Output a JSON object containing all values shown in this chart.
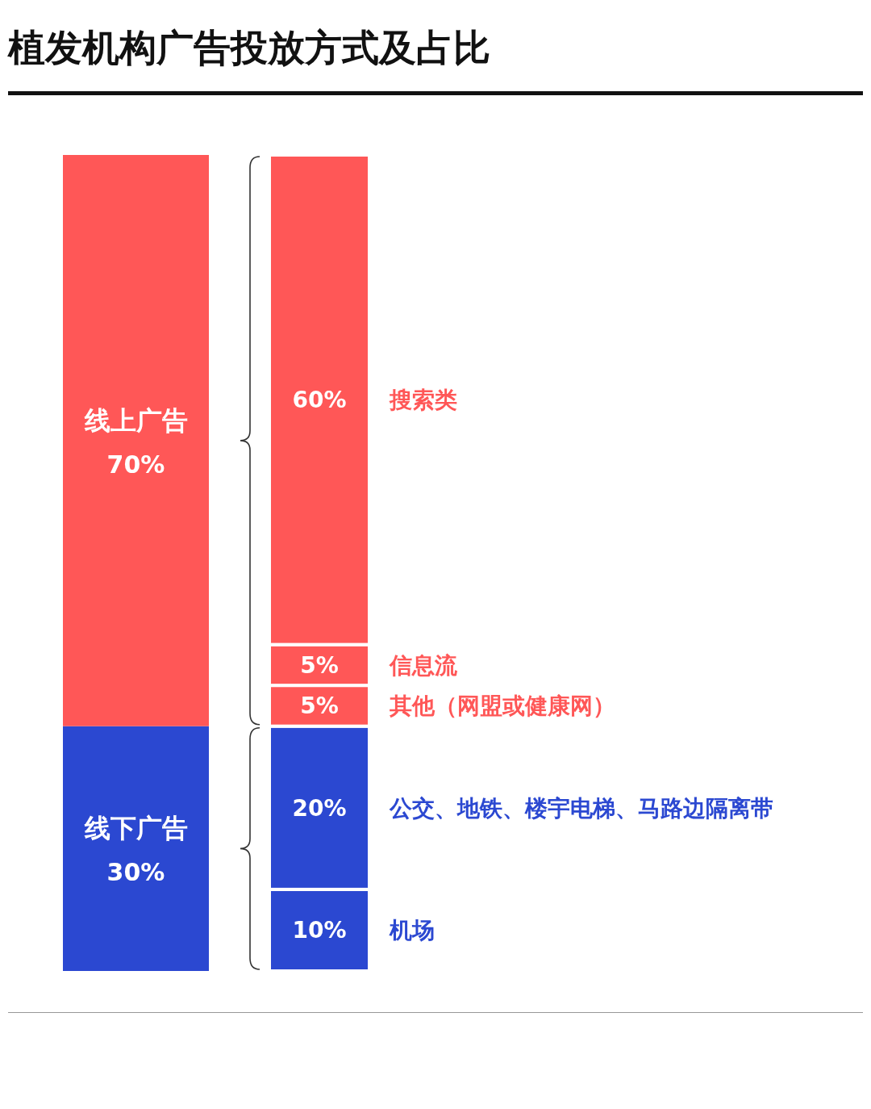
{
  "chart_data": [
    {
      "type": "bar",
      "title": "植发机构广告投放方式及占比",
      "stacked": true,
      "categories": [
        null
      ],
      "series": [
        {
          "name": "线下广告",
          "color": "#2b48d1",
          "values": [
            30
          ],
          "value_labels": [
            "30%"
          ]
        },
        {
          "name": "线上广告",
          "color": "#ff5757",
          "values": [
            70
          ],
          "value_labels": [
            "70%"
          ]
        }
      ]
    },
    {
      "type": "bar",
      "stacked": true,
      "categories": [
        null
      ],
      "series": [
        {
          "name": "机场",
          "color": "#2b48d1",
          "values": [
            10
          ],
          "value_labels": [
            "10%"
          ]
        },
        {
          "name": "公交、地铁、楼宇电梯、马路边隔离带",
          "color": "#2b48d1",
          "values": [
            20
          ],
          "value_labels": [
            "20%"
          ]
        },
        {
          "name": "其他（网盟或健康网）",
          "color": "#ff5757",
          "values": [
            5
          ],
          "value_labels": [
            "5%"
          ]
        },
        {
          "name": "信息流",
          "color": "#ff5757",
          "values": [
            5
          ],
          "value_labels": [
            "5%"
          ]
        },
        {
          "name": "搜索类",
          "color": "#ff5757",
          "values": [
            60
          ],
          "value_labels": [
            "60%"
          ]
        }
      ]
    }
  ]
}
